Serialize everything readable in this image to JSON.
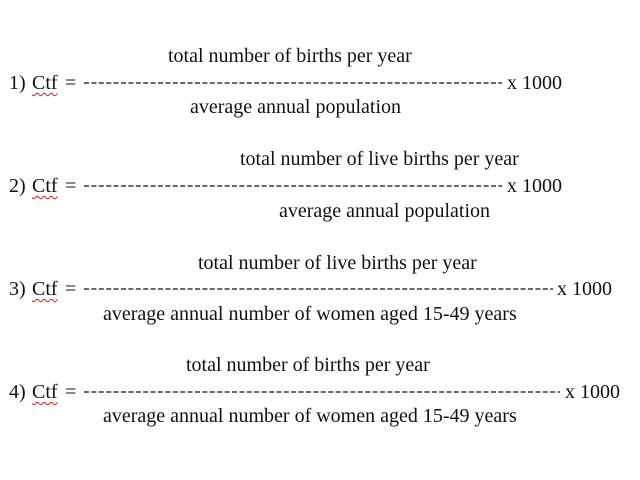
{
  "formulas": [
    {
      "numerator": "total number of births per year",
      "lhs_number": "1)",
      "lhs_symbol": "Ctf",
      "equals": "=",
      "dashes": "--------------------------------------------------------",
      "multiplier": "x 1000",
      "denominator": "average annual population"
    },
    {
      "numerator": "total number of live births per year",
      "lhs_number": "2)",
      "lhs_symbol": "Ctf",
      "equals": "=",
      "dashes": "--------------------------------------------------------",
      "multiplier": "x 1000",
      "denominator": "average annual population"
    },
    {
      "numerator": "total number of live births per year",
      "lhs_number": "3)",
      "lhs_symbol": "Ctf",
      "equals": "=",
      "dashes": "----------------------------------------------------------------",
      "multiplier": "x 1000",
      "denominator": "average annual number of women aged 15-49 years"
    },
    {
      "numerator": "total number of births per year",
      "lhs_number": "4)",
      "lhs_symbol": "Ctf",
      "equals": "=",
      "dashes": "-----------------------------------------------------------------",
      "multiplier": "x 1000",
      "denominator": "average annual number of women aged 15-49 years"
    }
  ],
  "colors": {
    "text": "#111111",
    "spellcheck_underline": "#d02020",
    "background": "#ffffff"
  }
}
